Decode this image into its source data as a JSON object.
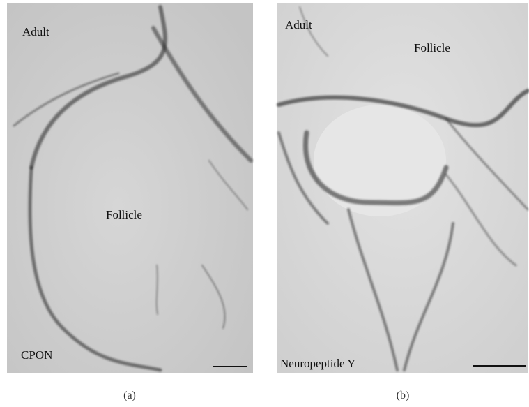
{
  "panels": [
    {
      "caption": "(a)",
      "top_label": "Adult",
      "center_label": "Follicle",
      "bottom_label": "CPON"
    },
    {
      "caption": "(b)",
      "top_label": "Adult",
      "center_label": "Follicle",
      "bottom_label": "Neuropeptide Y"
    }
  ]
}
